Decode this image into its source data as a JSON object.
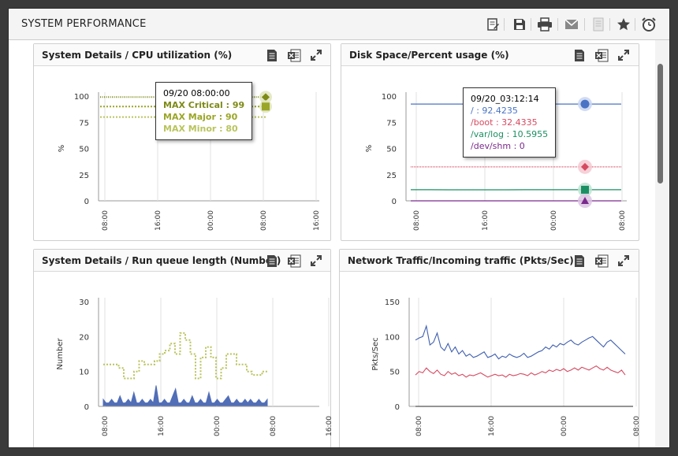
{
  "page": {
    "title": "SYSTEM PERFORMANCE",
    "toolbar": [
      {
        "icon": "edit-report-icon"
      },
      {
        "icon": "save-icon"
      },
      {
        "icon": "print-icon"
      },
      {
        "icon": "email-icon"
      },
      {
        "icon": "document-disabled-icon"
      },
      {
        "icon": "favorite-star-icon"
      },
      {
        "icon": "alarm-clock-icon"
      }
    ]
  },
  "panel_icons": [
    "pdf-document-icon",
    "excel-export-icon",
    "expand-icon"
  ],
  "panels": [
    {
      "title": "System Details  / CPU utilization (%)",
      "tooltip": {
        "header": "09/20 08:00:00",
        "lines": [
          {
            "text": "MAX Critical : 99",
            "color": "#7d8a16"
          },
          {
            "text": "MAX Major : 90",
            "color": "#9aa626"
          },
          {
            "text": "MAX Minor : 80",
            "color": "#b9c45c"
          }
        ]
      }
    },
    {
      "title": "Disk Space/Percent usage (%)",
      "tooltip": {
        "header": "09/20_03:12:14",
        "lines": [
          {
            "text": "/ : 92.4235",
            "color": "#4a73c6"
          },
          {
            "text": "/boot : 32.4335",
            "color": "#d64a60"
          },
          {
            "text": "/var/log : 10.5955",
            "color": "#1a8f63"
          },
          {
            "text": "/dev/shm : 0",
            "color": "#7a2a8c"
          }
        ]
      }
    },
    {
      "title": "System Details  / Run queue length (Number)"
    },
    {
      "title": "Network Traffic/Incoming traffic (Pkts/Sec)"
    }
  ],
  "chart_data": [
    {
      "type": "line",
      "ylabel": "%",
      "ylim": [
        0,
        100
      ],
      "yticks": [
        0,
        25,
        50,
        75,
        100
      ],
      "xticks": [
        "08:00",
        "16:00",
        "00:00",
        "08:00",
        "16:00"
      ],
      "series": [
        {
          "name": "MAX Critical",
          "color": "#7d8a16",
          "style": "dotted",
          "values": [
            99,
            99,
            99,
            99,
            99,
            99,
            99
          ]
        },
        {
          "name": "MAX Major",
          "color": "#9aa626",
          "style": "dotted",
          "values": [
            90,
            90,
            90,
            90,
            90,
            90,
            90
          ]
        },
        {
          "name": "MAX Minor",
          "color": "#b9c45c",
          "style": "dotted",
          "values": [
            80,
            80,
            80,
            80,
            80,
            80,
            80
          ]
        }
      ]
    },
    {
      "type": "line",
      "ylabel": "%",
      "ylim": [
        0,
        100
      ],
      "yticks": [
        0,
        25,
        50,
        75,
        100
      ],
      "xticks": [
        "08:00",
        "16:00",
        "00:00",
        "08:00"
      ],
      "series": [
        {
          "name": "/",
          "color": "#4a73c6",
          "values": [
            92.4,
            92.4,
            92.4,
            92.4,
            92.4,
            92.4,
            92.4,
            92.4,
            92.4,
            92.4,
            92.4235,
            92.4
          ]
        },
        {
          "name": "/boot",
          "color": "#d64a60",
          "values": [
            32.4,
            32.4,
            32.4,
            32.4,
            32.4,
            32.4,
            32.4,
            32.4,
            32.4,
            32.4,
            32.4335,
            32.4
          ]
        },
        {
          "name": "/var/log",
          "color": "#1a8f63",
          "values": [
            10.6,
            10.6,
            10.5,
            10.5,
            10.5,
            10.5,
            10.6,
            10.6,
            10.6,
            10.6,
            10.5955,
            10.6
          ]
        },
        {
          "name": "/dev/shm",
          "color": "#7a2a8c",
          "values": [
            0,
            0,
            0,
            0,
            0,
            0,
            0,
            0,
            0,
            0,
            0,
            0
          ]
        }
      ]
    },
    {
      "type": "line",
      "ylabel": "Number",
      "ylim": [
        0,
        30
      ],
      "yticks": [
        0,
        10,
        20,
        30
      ],
      "xticks": [
        "08:00",
        "16:00",
        "00:00",
        "08:00",
        "16:00"
      ],
      "series": [
        {
          "color": "#b9c45c",
          "style": "dotted",
          "values": [
            12,
            12,
            12,
            11,
            8,
            8,
            10,
            13,
            12,
            12,
            13,
            15,
            16,
            18,
            15,
            21,
            19,
            15,
            8,
            14,
            17,
            14,
            8,
            11,
            15,
            15,
            12,
            12,
            10,
            9,
            9,
            10,
            10
          ]
        },
        {
          "color": "#3f5fb0",
          "style": "spiky",
          "values": [
            2,
            1,
            1,
            2,
            1,
            1,
            3,
            1,
            1,
            2,
            1,
            4,
            1,
            1,
            2,
            1,
            1,
            2,
            1,
            6,
            1,
            1,
            2,
            1,
            1,
            3,
            5,
            1,
            1,
            2,
            1,
            1,
            3,
            1,
            1,
            2,
            1,
            1,
            4,
            1,
            1,
            2,
            1,
            1,
            2,
            3,
            1,
            1,
            2,
            1,
            1,
            2,
            1,
            2,
            1,
            1,
            2,
            1,
            1,
            2
          ]
        }
      ]
    },
    {
      "type": "line",
      "ylabel": "Pkts/Sec",
      "ylim": [
        0,
        150
      ],
      "yticks": [
        0,
        50,
        100,
        150
      ],
      "xticks": [
        "08:00",
        "16:00",
        "00:00",
        "08:00"
      ],
      "series": [
        {
          "color": "#3f5fb0",
          "values": [
            95,
            98,
            100,
            115,
            88,
            92,
            105,
            85,
            80,
            90,
            78,
            85,
            75,
            80,
            72,
            75,
            70,
            72,
            75,
            78,
            70,
            72,
            75,
            68,
            72,
            70,
            75,
            72,
            70,
            72,
            76,
            70,
            72,
            75,
            78,
            80,
            85,
            82,
            88,
            85,
            90,
            88,
            92,
            95,
            90,
            88,
            92,
            95,
            98,
            100,
            95,
            90,
            85,
            92,
            95,
            90,
            85,
            80,
            75
          ]
        },
        {
          "color": "#d64a60",
          "values": [
            45,
            50,
            48,
            55,
            50,
            47,
            52,
            46,
            44,
            50,
            46,
            48,
            44,
            46,
            42,
            45,
            44,
            46,
            48,
            45,
            42,
            44,
            46,
            44,
            45,
            42,
            46,
            44,
            45,
            47,
            46,
            44,
            48,
            45,
            47,
            50,
            48,
            52,
            50,
            53,
            51,
            54,
            50,
            52,
            55,
            52,
            56,
            54,
            52,
            55,
            58,
            54,
            52,
            56,
            52,
            50,
            48,
            52,
            45
          ]
        },
        {
          "color": "#2a2a2a",
          "values": [
            0,
            0,
            0,
            0,
            0,
            0,
            0,
            0,
            0,
            0,
            0,
            0
          ]
        }
      ]
    }
  ]
}
